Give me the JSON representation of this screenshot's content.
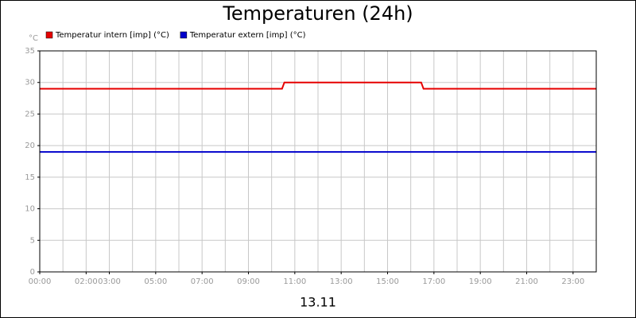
{
  "chart_data": {
    "type": "line",
    "title": "Temperaturen (24h)",
    "ylabel": "°C",
    "xlabel": "13.11",
    "xlim": [
      0,
      24
    ],
    "xticks": [
      {
        "value": 0,
        "label": "00:00"
      },
      {
        "value": 2,
        "label": "02:00"
      },
      {
        "value": 3,
        "label": "03:00"
      },
      {
        "value": 5,
        "label": "05:00"
      },
      {
        "value": 7,
        "label": "07:00"
      },
      {
        "value": 9,
        "label": "09:00"
      },
      {
        "value": 11,
        "label": "11:00"
      },
      {
        "value": 13,
        "label": "13:00"
      },
      {
        "value": 15,
        "label": "15:00"
      },
      {
        "value": 17,
        "label": "17:00"
      },
      {
        "value": 19,
        "label": "19:00"
      },
      {
        "value": 21,
        "label": "21:00"
      },
      {
        "value": 23,
        "label": "23:00"
      }
    ],
    "xgrid": [
      1,
      2,
      3,
      4,
      5,
      6,
      7,
      8,
      9,
      10,
      11,
      12,
      13,
      14,
      15,
      16,
      17,
      18,
      19,
      20,
      21,
      22,
      23
    ],
    "ylim": [
      0,
      35
    ],
    "yticks": [
      0,
      5,
      10,
      15,
      20,
      25,
      30,
      35
    ],
    "grid": true,
    "series": [
      {
        "name": "Temperatur intern [imp] (°C)",
        "color": "#e60000",
        "x": [
          0,
          10.45,
          10.55,
          16.45,
          16.55,
          24
        ],
        "values": [
          29,
          29,
          30,
          30,
          29,
          29
        ]
      },
      {
        "name": "Temperatur extern [imp] (°C)",
        "color": "#0000cc",
        "x": [
          0,
          24
        ],
        "values": [
          19,
          19
        ]
      }
    ]
  }
}
